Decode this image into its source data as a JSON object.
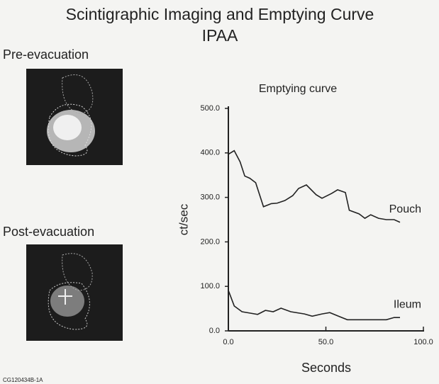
{
  "header": {
    "title": "Scintigraphic Imaging and Emptying Curve",
    "subtitle": "IPAA"
  },
  "panels": [
    {
      "label": "Pre-evacuation"
    },
    {
      "label": "Post-evacuation"
    }
  ],
  "footer": "CG120434B-1A",
  "chart_data": {
    "type": "line",
    "title": "Emptying curve",
    "x_label": "Seconds",
    "y_label": "ct/sec",
    "xlim": [
      0,
      100
    ],
    "ylim": [
      0,
      500
    ],
    "xticks": [
      {
        "value": 0,
        "label": "0.0"
      },
      {
        "value": 50,
        "label": "50.0"
      },
      {
        "value": 100,
        "label": "100.0"
      }
    ],
    "yticks": [
      {
        "value": 0,
        "label": "0.0"
      },
      {
        "value": 100,
        "label": "100.0"
      },
      {
        "value": 200,
        "label": "200.0"
      },
      {
        "value": 300,
        "label": "300.0"
      },
      {
        "value": 400,
        "label": "400.0"
      },
      {
        "value": 500,
        "label": "500.0"
      }
    ],
    "series": [
      {
        "name": "Pouch",
        "color": "#222222",
        "x": [
          0,
          3,
          6,
          8.4,
          11,
          14,
          18,
          22,
          25,
          29,
          33,
          36,
          40,
          45,
          48,
          53,
          56,
          60,
          62,
          67,
          70,
          73,
          77,
          81,
          85,
          88
        ],
        "values": [
          397,
          405,
          380,
          348,
          343,
          333,
          279,
          286,
          287,
          293,
          304,
          320,
          328,
          306,
          298,
          309,
          317,
          311,
          271,
          263,
          253,
          261,
          253,
          250,
          250,
          244
        ]
      },
      {
        "name": "Ileum",
        "color": "#222222",
        "x": [
          0,
          3,
          7,
          11,
          15,
          19,
          23,
          27,
          32,
          39,
          43,
          48,
          52,
          57,
          61,
          72,
          81,
          85,
          88
        ],
        "values": [
          91,
          56,
          43,
          40,
          37,
          46,
          43,
          51,
          43,
          38,
          33,
          38,
          41,
          32,
          25,
          25,
          25,
          30,
          30
        ]
      }
    ]
  }
}
